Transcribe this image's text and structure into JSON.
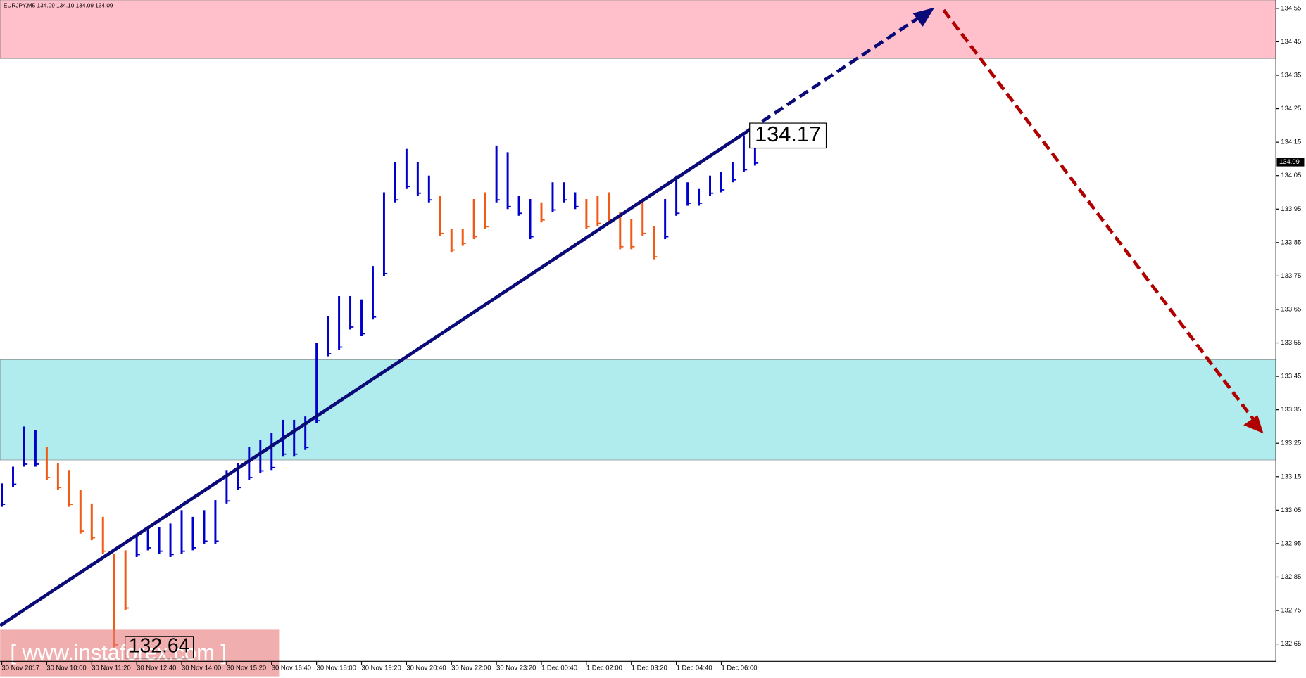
{
  "chart_data": {
    "type": "ohlc",
    "title": "EURJPY,M5  134.09 134.10 134.09 134.09",
    "high": [
      133.13,
      133.18,
      133.3,
      133.29,
      133.24,
      133.19,
      133.17,
      133.11,
      133.07,
      133.03,
      132.92,
      132.93,
      132.98,
      132.99,
      133.0,
      133.01,
      133.05,
      133.03,
      133.05,
      133.08,
      133.17,
      133.19,
      133.24,
      133.26,
      133.28,
      133.32,
      133.32,
      133.33,
      133.55,
      133.63,
      133.69,
      133.69,
      133.68,
      133.78,
      134.0,
      134.09,
      134.13,
      134.09,
      134.05,
      133.99,
      133.89,
      133.89,
      133.98,
      134.0,
      134.14,
      134.12,
      133.99,
      133.98,
      133.97,
      134.03,
      134.03,
      134.0,
      133.98,
      133.99,
      134.0,
      133.94,
      133.92,
      133.98,
      133.9,
      133.98,
      134.05,
      134.03,
      134.01,
      134.05,
      134.06,
      134.09,
      134.17,
      134.16
    ],
    "low": [
      133.06,
      133.12,
      133.18,
      133.18,
      133.14,
      133.11,
      133.06,
      132.98,
      132.96,
      132.92,
      132.64,
      132.75,
      132.91,
      132.93,
      132.92,
      132.91,
      132.92,
      132.93,
      132.95,
      132.95,
      133.07,
      133.11,
      133.14,
      133.16,
      133.17,
      133.21,
      133.21,
      133.23,
      133.31,
      133.51,
      133.53,
      133.59,
      133.57,
      133.62,
      133.75,
      133.97,
      134.01,
      133.99,
      133.97,
      133.87,
      133.82,
      133.84,
      133.86,
      133.89,
      133.97,
      133.95,
      133.93,
      133.86,
      133.91,
      133.94,
      133.97,
      133.95,
      133.89,
      133.9,
      133.91,
      133.83,
      133.83,
      133.87,
      133.8,
      133.86,
      133.93,
      133.96,
      133.96,
      133.99,
      134.0,
      134.03,
      134.06,
      134.08
    ],
    "colors": [
      "#0000cc",
      "#0000cc",
      "#0000cc",
      "#0000cc",
      "#f05a14",
      "#f05a14",
      "#f05a14",
      "#f05a14",
      "#f05a14",
      "#f05a14",
      "#f05a14",
      "#f05a14",
      "#0000cc",
      "#0000cc",
      "#0000cc",
      "#0000cc",
      "#0000cc",
      "#0000cc",
      "#0000cc",
      "#0000cc",
      "#0000cc",
      "#0000cc",
      "#0000cc",
      "#0000cc",
      "#0000cc",
      "#0000cc",
      "#0000cc",
      "#0000cc",
      "#0000cc",
      "#0000cc",
      "#0000cc",
      "#0000cc",
      "#0000cc",
      "#0000cc",
      "#0000cc",
      "#0000cc",
      "#0000cc",
      "#0000cc",
      "#0000cc",
      "#f05a14",
      "#f05a14",
      "#f05a14",
      "#f05a14",
      "#f05a14",
      "#0000cc",
      "#0000cc",
      "#0000cc",
      "#0000cc",
      "#f05a14",
      "#0000cc",
      "#0000cc",
      "#0000cc",
      "#f05a14",
      "#f05a14",
      "#f05a14",
      "#f05a14",
      "#f05a14",
      "#f05a14",
      "#f05a14",
      "#0000cc",
      "#0000cc",
      "#0000cc",
      "#0000cc",
      "#0000cc",
      "#0000cc",
      "#0000cc",
      "#0000cc",
      "#0000cc"
    ],
    "xticks": [
      {
        "value": 0,
        "label": "30 Nov 2017"
      },
      {
        "value": 4,
        "label": "30 Nov 10:00"
      },
      {
        "value": 8,
        "label": "30 Nov 11:20"
      },
      {
        "value": 12,
        "label": "30 Nov 12:40"
      },
      {
        "value": 16,
        "label": "30 Nov 14:00"
      },
      {
        "value": 20,
        "label": "30 Nov 15:20"
      },
      {
        "value": 24,
        "label": "30 Nov 16:40"
      },
      {
        "value": 28,
        "label": "30 Nov 18:00"
      },
      {
        "value": 32,
        "label": "30 Nov 19:20"
      },
      {
        "value": 36,
        "label": "30 Nov 20:40"
      },
      {
        "value": 40,
        "label": "30 Nov 22:00"
      },
      {
        "value": 44,
        "label": "30 Nov 23:20"
      },
      {
        "value": 48,
        "label": "1 Dec 00:40"
      },
      {
        "value": 52,
        "label": "1 Dec 02:00"
      },
      {
        "value": 56,
        "label": "1 Dec 03:20"
      },
      {
        "value": 60,
        "label": "1 Dec 04:40"
      },
      {
        "value": 64,
        "label": "1 Dec 06:00"
      }
    ],
    "ylim": [
      132.598,
      134.575
    ],
    "yticks": [
      132.65,
      132.75,
      132.85,
      132.95,
      133.05,
      133.15,
      133.25,
      133.35,
      133.45,
      133.55,
      133.65,
      133.75,
      133.85,
      133.95,
      134.05,
      134.15,
      134.25,
      134.35,
      134.45,
      134.55
    ],
    "current_price": 134.09,
    "high_label": 134.17,
    "low_label": 132.64,
    "zones": [
      {
        "low": 134.4,
        "color": "#ffc0cb"
      },
      {
        "low": 133.2,
        "high": 133.5,
        "color": "#b0ecee"
      }
    ],
    "watermark": "[  www.instaforex.com  ]"
  }
}
